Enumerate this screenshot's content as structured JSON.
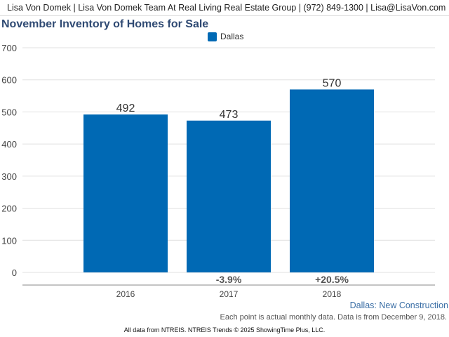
{
  "header": {
    "text": "Lisa Von Domek | Lisa Von Domek Team At Real Living Real Estate Group | (972) 849-1300 | Lisa@LisaVon.com"
  },
  "colors": {
    "bar": "#0069b4",
    "title": "#2f4a73",
    "grid": "#e0e0e0"
  },
  "chart_data": {
    "type": "bar",
    "title": "November Inventory of Homes for Sale",
    "categories": [
      "2016",
      "2017",
      "2018"
    ],
    "series": [
      {
        "name": "Dallas",
        "values": [
          492,
          473,
          570
        ]
      }
    ],
    "data_labels": [
      "492",
      "473",
      "570"
    ],
    "change_labels": [
      "",
      "-3.9%",
      "+20.5%"
    ],
    "ylim": [
      0,
      700
    ],
    "yticks": [
      0,
      100,
      200,
      300,
      400,
      500,
      600,
      700
    ],
    "grid": true,
    "legend": "top-center",
    "xlabel": "",
    "ylabel": ""
  },
  "notes": {
    "series_note": "Dallas: New Construction",
    "data_note": "Each point is actual monthly data. Data is from December 9, 2018.",
    "footer": "All data from NTREIS. NTREIS Trends © 2025 ShowingTime Plus, LLC."
  }
}
